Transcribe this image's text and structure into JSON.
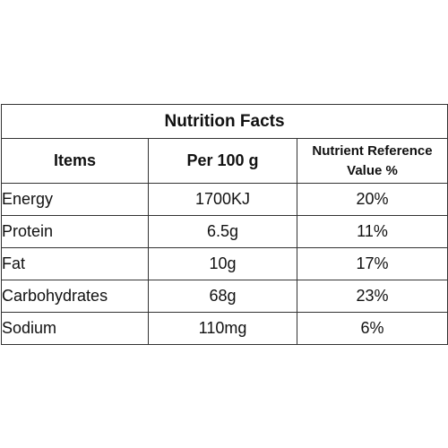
{
  "table": {
    "title": "Nutrition Facts",
    "headers": {
      "items": "Items",
      "per_100g": "Per 100 g",
      "reference_line1": "Nutrient Reference",
      "reference_line2": "Value %"
    },
    "rows": [
      {
        "item": "Energy",
        "amount": "1700KJ",
        "reference": "20%"
      },
      {
        "item": "Protein",
        "amount": "6.5g",
        "reference": "11%"
      },
      {
        "item": "Fat",
        "amount": "10g",
        "reference": "17%"
      },
      {
        "item": "Carbohydrates",
        "amount": "68g",
        "reference": "23%"
      },
      {
        "item": "Sodium",
        "amount": "110mg",
        "reference": "6%"
      }
    ]
  }
}
